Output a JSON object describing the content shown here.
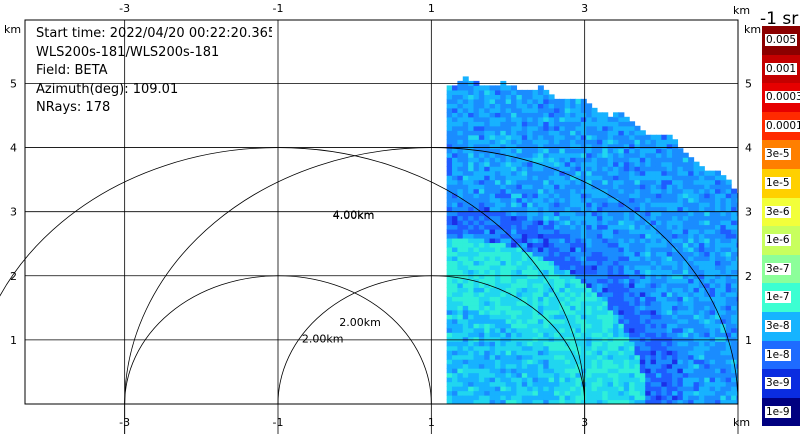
{
  "info": {
    "start_time": "Start time: 2022/04/20 00:22:20.365",
    "instrument": "WLS200s-181/WLS200s-181",
    "field": "Field: BETA",
    "azimuth": "Azimuth(deg): 109.01",
    "nrays": "NRays: 178"
  },
  "colorbar": {
    "title": "-1 sr",
    "labels": [
      "0.005",
      "0.001",
      "0.0003",
      "0.0001",
      "3e-5",
      "1e-5",
      "3e-6",
      "1e-6",
      "3e-7",
      "1e-7",
      "3e-8",
      "1e-8",
      "3e-9",
      "1e-9"
    ],
    "colors": [
      "#8b0000",
      "#c40000",
      "#e60000",
      "#ff2a00",
      "#ff7f00",
      "#ffd000",
      "#f2ff3a",
      "#c8ff5e",
      "#8cff9a",
      "#3cffd2",
      "#16b4ff",
      "#1e6bff",
      "#0a2ce0",
      "#000080"
    ]
  },
  "chart_data": {
    "type": "heatmap",
    "title": "",
    "xlabel": "km",
    "ylabel": "km",
    "xlim": [
      -4.3,
      5.0
    ],
    "ylim": [
      0,
      5.99
    ],
    "x_ticks": [
      -3,
      -1,
      1,
      3
    ],
    "y_ticks": [
      1,
      2,
      3,
      4,
      5
    ],
    "x_tick_labels": [
      "-3",
      "-1",
      "1",
      "3"
    ],
    "y_tick_labels": [
      "1",
      "2",
      "3",
      "4",
      "5"
    ],
    "x_unit_label": "km",
    "y_unit_label": "km",
    "grid": true,
    "range_rings": [
      {
        "radius_km": 2.0,
        "label": "2.00km",
        "center": [
          1,
          0
        ]
      },
      {
        "radius_km": 4.0,
        "label": "4.00km",
        "center": [
          1,
          0
        ]
      },
      {
        "radius_km": 2.0,
        "label": "2.00km",
        "center": [
          -1,
          0
        ]
      },
      {
        "radius_km": 4.0,
        "label": "4.00km",
        "center": [
          -1,
          0
        ]
      }
    ],
    "sector": {
      "center": [
        1.2,
        0
      ],
      "max_range_km": 5.1,
      "az_start_deg": 0,
      "az_end_deg": 90
    },
    "field": "BETA",
    "units": "sr-1"
  }
}
